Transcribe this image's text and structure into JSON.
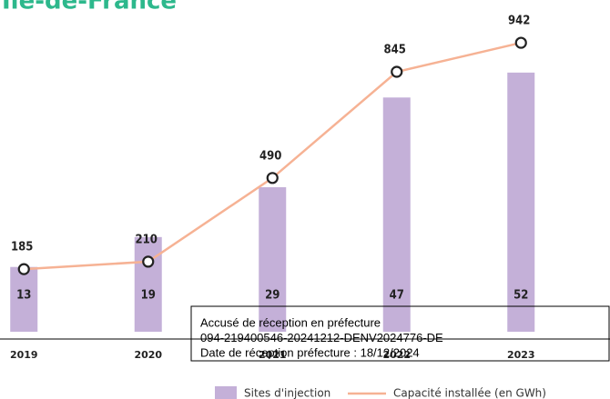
{
  "chart_data": {
    "type": "bar",
    "title": "Île-de-France",
    "categories": [
      "2019",
      "2020",
      "2021",
      "2022",
      "2023"
    ],
    "series": [
      {
        "name": "Sites d'injection",
        "type": "bar",
        "color": "#c4b0d8",
        "values": [
          13,
          19,
          29,
          47,
          52
        ]
      },
      {
        "name": "Capacité installée (en GWh)",
        "type": "line",
        "axis": "y2",
        "color": "#f6b294",
        "values": [
          185,
          210,
          490,
          845,
          942
        ]
      }
    ],
    "ylim": [
      0,
      60
    ],
    "y2lim": [
      0,
      1000
    ],
    "legend": "bottom"
  },
  "stamp": {
    "lines": [
      "Accusé de réception en préfecture",
      "094-219400546-20241212-DENV2024776-DE",
      "Date de réception préfecture : 18/12/2024"
    ]
  }
}
